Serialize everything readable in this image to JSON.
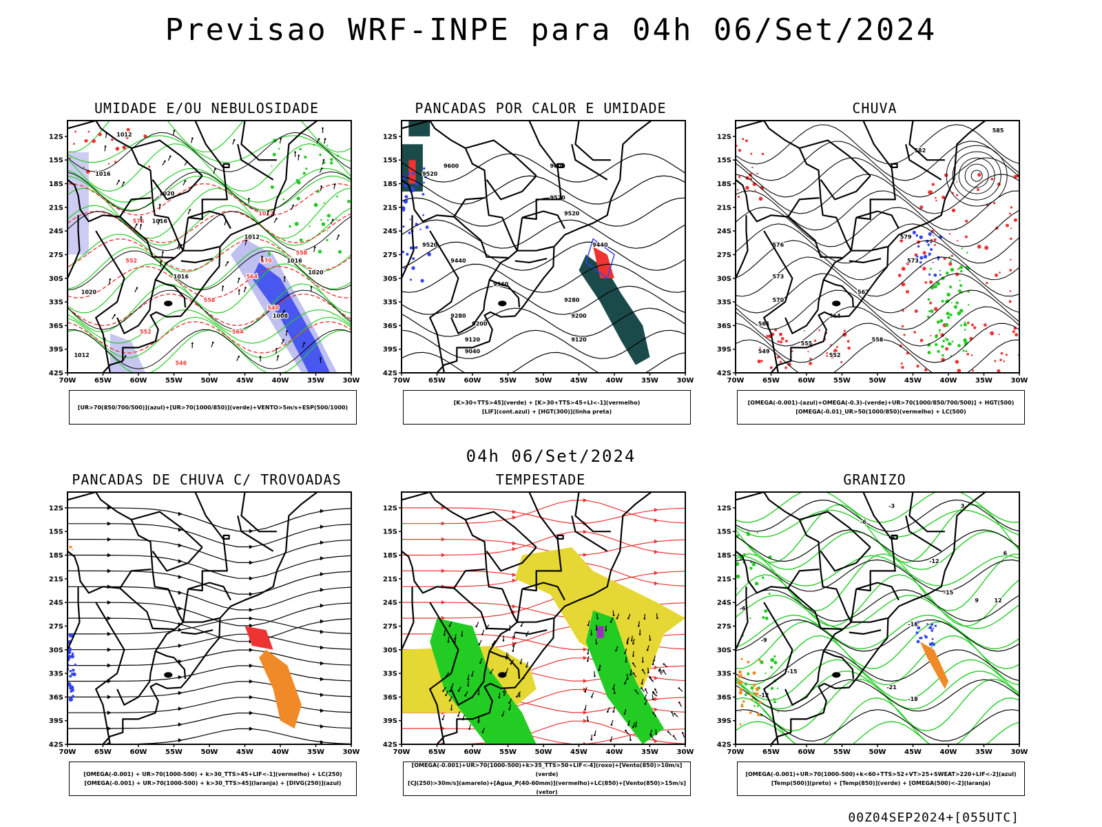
{
  "title": "Previsao WRF-INPE  para 04h 06/Set/2024",
  "mid_title": "04h 06/Set/2024",
  "footer": "00Z04SEP2024+[055UTC]",
  "axes": {
    "lat_labels": [
      "12S",
      "15S",
      "18S",
      "21S",
      "24S",
      "27S",
      "30S",
      "33S",
      "36S",
      "39S",
      "42S"
    ],
    "lon_labels": [
      "70W",
      "65W",
      "60W",
      "55W",
      "50W",
      "45W",
      "40W",
      "35W",
      "30W"
    ]
  },
  "colors": {
    "green": "#22cc22",
    "red": "#ee3333",
    "blue": "#3344ee",
    "orange": "#f08a28",
    "yellow": "#e6d834",
    "darkteal": "#1a4a4a",
    "lavender": "#b8b8ee"
  },
  "panels": [
    {
      "title": "UMIDADE E/OU NEBULOSIDADE",
      "legend": [
        "[UR>70(850/700/500)](azul)+[UR>70(1000/850)](verde)+VENTO>5m/s+ESP(500/1000)"
      ],
      "labels": [
        "1012",
        "1016",
        "1020",
        "1016",
        "1012",
        "1016",
        "1020",
        "1016",
        "1020",
        "1012",
        "1008",
        "1012",
        "576",
        "570",
        "564",
        "558",
        "552",
        "546",
        "540",
        "564",
        "558",
        "552"
      ]
    },
    {
      "title": "PANCADAS POR CALOR E UMIDADE",
      "legend": [
        "[K>30+TTS>45](verde) + [K>30+TTS>45+LI<-1](vermelho)",
        "[LIF](cont.azul) + [HGT(300)](linha preta)"
      ],
      "labels": [
        "9520",
        "9600",
        "9600",
        "9520",
        "9520",
        "9520",
        "9440",
        "9440",
        "9360",
        "9280",
        "9280",
        "9200",
        "9200",
        "9120",
        "9120",
        "9040"
      ]
    },
    {
      "title": "CHUVA",
      "legend": [
        "[OMEGA(-0.001)-(azul)+OMEGA(-0.3)-(verde)+UR>70(1000/850/700/500)] + HGT(500)",
        "[OMEGA(-0.01)_UR>50(1000/850)(vermelho) + LC(500)"
      ],
      "labels": [
        "585",
        "582",
        "579",
        "576",
        "573",
        "570",
        "567",
        "564",
        "561",
        "558",
        "555",
        "552",
        "549",
        "573"
      ]
    },
    {
      "title": "PANCADAS DE CHUVA C/ TROVOADAS",
      "legend": [
        "[OMEGA(-0.001) + UR>70(1000-500) + k>30_TTS>45+LIF<-1](vermelho) + LC(250)",
        "[OMEGA(-0.001) + UR>70(1000-500) + k>30_TTS>45](laranja) + [DIVG(250)](azul)"
      ],
      "labels": []
    },
    {
      "title": "TEMPESTADE",
      "legend": [
        "[OMEGA(-0.001)+UR>70(1000-500)+k>35_TTS>50+LIF<-4](roxo)+[Vento(850)>10m/s](verde)",
        "[CJ(250)>30m/s](amarelo)+[Agua_P(40-60mm)](vermelho)+LC(850)+[Vento(850)>15m/s](vetor)"
      ],
      "labels": []
    },
    {
      "title": "GRANIZO",
      "legend": [
        "[OMEGA(-0.001)+UR>70(1000-500)+k<60+TTS>52+VT>25+SWEAT>220+LIF<-2](azul)",
        "[Temp(500)](preto) + [Temp(850)](verde) + [OMEGA(500)<-2](laranja)"
      ],
      "labels": [
        "-3",
        "-6",
        "-9",
        "-12",
        "-15",
        "-18",
        "-21",
        "-18",
        "-15",
        "-12",
        "-9",
        "-6",
        "3",
        "6",
        "9",
        "12"
      ]
    }
  ]
}
